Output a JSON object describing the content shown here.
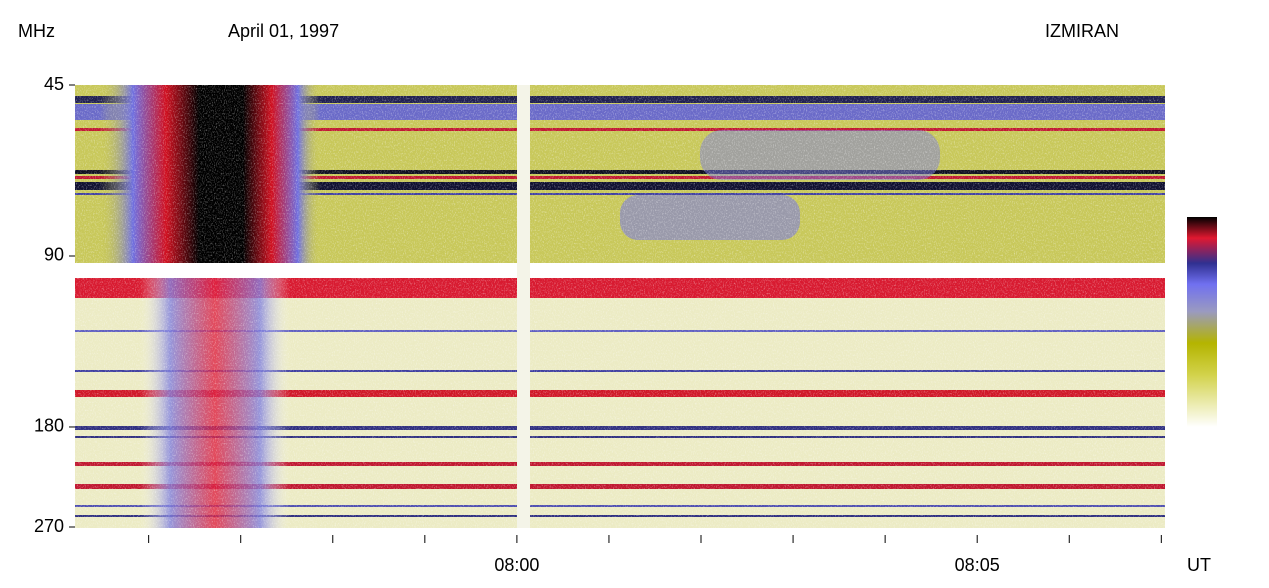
{
  "chart_data": {
    "type": "spectrogram",
    "title": "April 01, 1997",
    "source": "IZMIRAN",
    "y_label": "MHz",
    "x_label": "UT",
    "yscale": "log",
    "ylim": [
      45,
      270
    ],
    "yticks": [
      45,
      90,
      180,
      270
    ],
    "xlim": [
      475.2,
      487.04
    ],
    "xticks": [
      {
        "value": 480,
        "label": "08:00"
      },
      {
        "value": 485,
        "label": "08:05"
      }
    ],
    "xminorticks": [
      476,
      477,
      478,
      479,
      481,
      482,
      483,
      484,
      486,
      487
    ]
  }
}
